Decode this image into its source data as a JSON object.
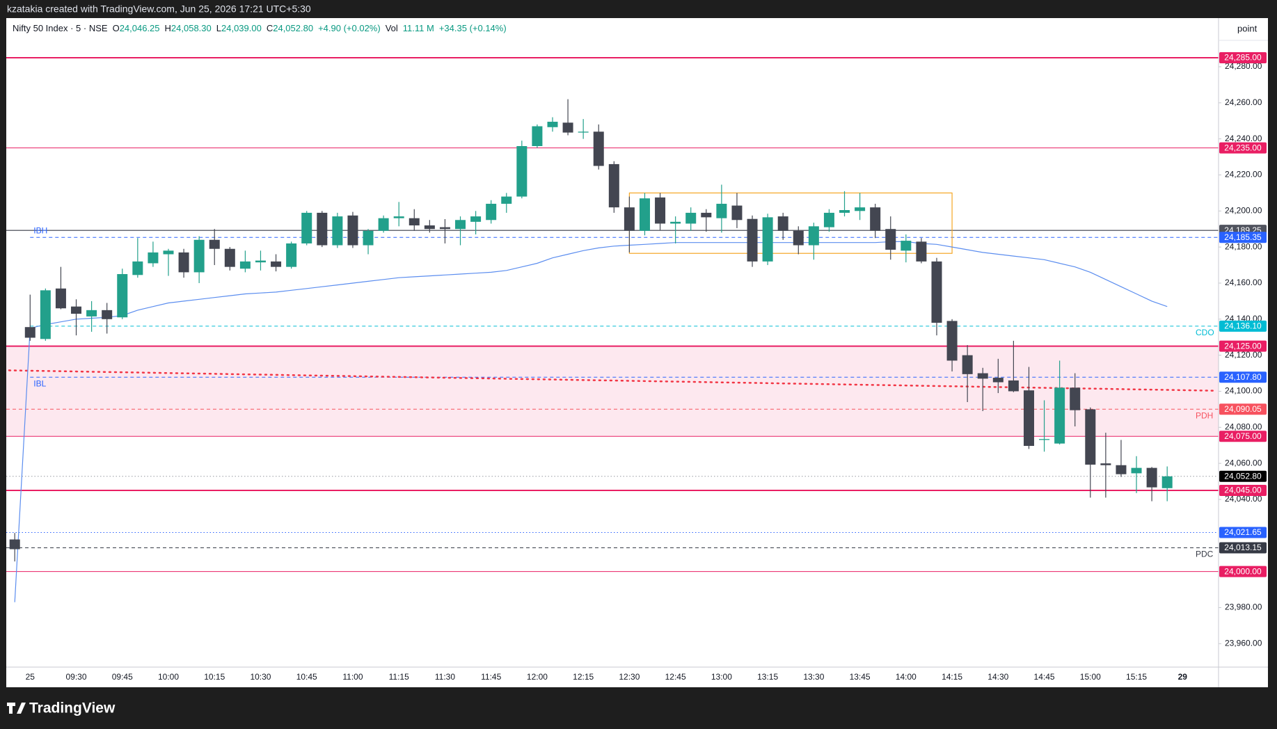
{
  "top_bar": {
    "text": "kzatakia created with TradingView.com, Jun 25, 2026 17:21 UTC+5:30"
  },
  "footer": {
    "brand": "TradingView"
  },
  "header": [
    {
      "text": "Nifty 50 Index · 5 · NSE",
      "color": "#131722"
    },
    {
      "text": "O",
      "color": "#131722"
    },
    {
      "text": "24,046.25",
      "color": "#089981"
    },
    {
      "text": "H",
      "color": "#131722"
    },
    {
      "text": "24,058.30",
      "color": "#089981"
    },
    {
      "text": "L",
      "color": "#131722"
    },
    {
      "text": "24,039.00",
      "color": "#089981"
    },
    {
      "text": "C",
      "color": "#131722"
    },
    {
      "text": "24,052.80",
      "color": "#089981"
    },
    {
      "text": "+4.90 (+0.02%)",
      "color": "#089981"
    },
    {
      "text": "Vol",
      "color": "#131722"
    },
    {
      "text": "11.11 M",
      "color": "#089981"
    },
    {
      "text": "+34.35 (+0.14%)",
      "color": "#089981"
    }
  ],
  "chart_data": {
    "type": "candlestick",
    "y_axis_unit": "point",
    "up_color": "#22a08b",
    "down_color": "#434651",
    "grid": false,
    "ylim": [
      23947,
      24307
    ],
    "yticks": [
      {
        "value": 24280,
        "label": "24,280.00"
      },
      {
        "value": 24260,
        "label": "24,260.00"
      },
      {
        "value": 24240,
        "label": "24,240.00"
      },
      {
        "value": 24220,
        "label": "24,220.00"
      },
      {
        "value": 24200,
        "label": "24,200.00"
      },
      {
        "value": 24180,
        "label": "24,180.00"
      },
      {
        "value": 24160,
        "label": "24,160.00"
      },
      {
        "value": 24140,
        "label": "24,140.00"
      },
      {
        "value": 24120,
        "label": "24,120.00"
      },
      {
        "value": 24100,
        "label": "24,100.00"
      },
      {
        "value": 24080,
        "label": "24,080.00"
      },
      {
        "value": 24060,
        "label": "24,060.00"
      },
      {
        "value": 24040,
        "label": "24,040.00"
      },
      {
        "value": 23980,
        "label": "23,980.00"
      },
      {
        "value": 23960,
        "label": "23,960.00"
      }
    ],
    "categories": [
      null,
      "25",
      null,
      null,
      "09:30",
      null,
      null,
      "09:45",
      null,
      null,
      "10:00",
      null,
      null,
      "10:15",
      null,
      null,
      "10:30",
      null,
      null,
      "10:45",
      null,
      null,
      "11:00",
      null,
      null,
      "11:15",
      null,
      null,
      "11:30",
      null,
      null,
      "11:45",
      null,
      null,
      "12:00",
      null,
      null,
      "12:15",
      null,
      null,
      "12:30",
      null,
      null,
      "12:45",
      null,
      null,
      "13:00",
      null,
      null,
      "13:15",
      null,
      null,
      "13:30",
      null,
      null,
      "13:45",
      null,
      null,
      "14:00",
      null,
      null,
      "14:15",
      null,
      null,
      "14:30",
      null,
      null,
      "14:45",
      null,
      null,
      "15:00",
      null,
      null,
      "15:15",
      null,
      null,
      "29"
    ],
    "open": [
      24017.8,
      24135.6,
      24129,
      24157,
      24147,
      24141.5,
      24145,
      24141,
      24164.5,
      24171,
      24176,
      24177,
      24166,
      24184,
      24179,
      24168,
      24171.5,
      24172,
      24169,
      24182,
      24199,
      24181,
      24197.5,
      24181,
      24189,
      24196,
      24196,
      24192,
      24191,
      24190,
      24194,
      24195,
      24204,
      24208,
      24236,
      24246.5,
      24249,
      24243.5,
      24244,
      24226,
      24202,
      24189,
      24207.5,
      24193,
      24193,
      24199,
      24196,
      24203,
      24195.6,
      24172,
      24197,
      24189,
      24181,
      24191,
      24199,
      24200,
      24202,
      24190,
      24178,
      24183,
      24172,
      24139,
      24120,
      24110,
      24107.5,
      24106,
      24100.5,
      24073,
      24071,
      24102,
      24090,
      24060,
      24059,
      24054.5,
      24057.5,
      24046.25,
      null
    ],
    "high": [
      24021.4,
      24153.6,
      24157,
      24169,
      24151,
      24150,
      24149,
      24168,
      24185,
      24183,
      24179,
      24179,
      24186,
      24190,
      24180,
      24178,
      24178,
      24176,
      24183,
      24200,
      24200,
      24199,
      24199.5,
      24190,
      24197.5,
      24205,
      24201,
      24195,
      24195.5,
      24197,
      24200,
      24206,
      24210,
      24239,
      24248,
      24252,
      24262,
      24251,
      24248,
      24227.6,
      24208,
      24210,
      24210,
      24197,
      24202,
      24201,
      24214.6,
      24210,
      24197.5,
      24198.5,
      24199,
      24191.5,
      24193.5,
      24201,
      24211,
      24210,
      24204,
      24197,
      24187,
      24185,
      24174,
      24140,
      24125.6,
      24113,
      24118,
      24128,
      24113.5,
      24095,
      24117,
      24110,
      24091,
      24077,
      24073,
      24064,
      24058,
      24058.3,
      null
    ],
    "low": [
      24005.6,
      24128,
      24128,
      24145.5,
      24131,
      24133,
      24132,
      24140,
      24163,
      24169,
      24164,
      24163,
      24160,
      24170,
      24167,
      24166,
      24167,
      24166.5,
      24168,
      24181,
      24180,
      24179.5,
      24179.5,
      24176,
      24188,
      24191.5,
      24189,
      24188,
      24182,
      24181,
      24187,
      24193,
      24199,
      24207,
      24235,
      24244,
      24242,
      24240,
      24223,
      24199,
      24177,
      24186.5,
      24189.5,
      24182,
      24189,
      24188.5,
      24188,
      24190.5,
      24169,
      24170,
      24184,
      24176,
      24173,
      24188.5,
      24197,
      24195,
      24185,
      24173,
      24171.5,
      24171,
      24131,
      24111,
      24094,
      24089,
      24099,
      24099.5,
      24068,
      24066.5,
      24070.5,
      24080.5,
      24041,
      24041,
      24052.5,
      24043.5,
      24039,
      24039,
      null
    ],
    "close": [
      24012.4,
      24129.7,
      24156,
      24146,
      24143,
      24145,
      24140,
      24165,
      24172,
      24177,
      24178,
      24166,
      24184,
      24179,
      24169,
      24172,
      24172.5,
      24169,
      24182,
      24199,
      24181,
      24197,
      24181,
      24189,
      24196,
      24197,
      24192,
      24190,
      24190,
      24195,
      24197,
      24204,
      24208,
      24236,
      24247,
      24249.5,
      24243.5,
      24244,
      24225,
      24202,
      24189,
      24207,
      24193,
      24194,
      24199,
      24196.5,
      24204,
      24195,
      24172,
      24196.5,
      24189,
      24181,
      24191.5,
      24199,
      24200.5,
      24202,
      24189,
      24178.5,
      24183.5,
      24172,
      24138,
      24117,
      24109.5,
      24107,
      24105,
      24100,
      24069.7,
      24073.5,
      24102,
      24089.5,
      24059.3,
      24059,
      24054,
      24057.5,
      24046.7,
      24052.8,
      null
    ],
    "ma": {
      "color": "#5b8def",
      "values": [
        23983,
        24135,
        24137,
        24138.5,
        24140,
        24140.5,
        24141,
        24142,
        24145,
        24147,
        24149,
        24150,
        24151,
        24152,
        24153,
        24154,
        24154.5,
        24155,
        24156,
        24157,
        24158,
        24159,
        24160,
        24161,
        24162,
        24163,
        24163.5,
        24164,
        24164.5,
        24165,
        24165.5,
        24166,
        24167,
        24169,
        24171,
        24174,
        24176,
        24178,
        24179.5,
        24180.5,
        24181,
        24181.5,
        24182,
        24182.5,
        24182.5,
        24182.5,
        24182.5,
        24182.5,
        24182.5,
        24182.5,
        24182.5,
        24182.5,
        24182.5,
        24182.5,
        24182.5,
        24182.5,
        24182.5,
        24183,
        24183,
        24182,
        24181.5,
        24180,
        24178.5,
        24177,
        24176,
        24175,
        24174,
        24173,
        24171,
        24169,
        24166,
        24162,
        24158,
        24154,
        24150,
        24147,
        null
      ]
    },
    "trendline": {
      "color": "#f23645",
      "values": [
        24111.6,
        24100.3
      ]
    },
    "zone": {
      "from": 24075,
      "to": 24125,
      "color": "#fde8ef"
    },
    "box": {
      "start": "12:30",
      "end": "14:15",
      "top": 24210,
      "bottom": 24176.5,
      "color": "#f5a623"
    },
    "levels": [
      {
        "value": 24285,
        "label": "24,285.00",
        "color": "#e91e63",
        "style": "solid",
        "width": 2
      },
      {
        "value": 24235,
        "label": "24,235.00",
        "color": "#e91e63",
        "style": "solid",
        "width": 1
      },
      {
        "value": 24189.25,
        "label": "24,189.25",
        "color": "#363a45",
        "box_color": "#50535e",
        "style": "solid",
        "width": 1.2
      },
      {
        "value": 24185.35,
        "label": "24,185.35",
        "color": "#2962ff",
        "style": "dashed",
        "width": 1,
        "tag": "IBH",
        "tag_side": "left",
        "from_open": true
      },
      {
        "value": 24136.1,
        "label": "24,136.10",
        "color": "#00bcd4",
        "style": "dashed",
        "width": 1,
        "tag": "CDO",
        "tag_side": "right",
        "from_open": true
      },
      {
        "value": 24125,
        "label": "24,125.00",
        "color": "#e91e63",
        "style": "solid",
        "width": 2
      },
      {
        "value": 24107.8,
        "label": "24,107.80",
        "color": "#2962ff",
        "style": "dashed",
        "width": 1,
        "tag": "IBL",
        "tag_side": "left",
        "from_open": true
      },
      {
        "value": 24090.05,
        "label": "24,090.05",
        "color": "#f7525f",
        "style": "dashed",
        "width": 1,
        "tag": "PDH",
        "tag_side": "right"
      },
      {
        "value": 24075,
        "label": "24,075.00",
        "color": "#e91e63",
        "style": "solid",
        "width": 1
      },
      {
        "value": 24052.8,
        "label": "24,052.80",
        "color": "#9598a1",
        "box_color": "#000000",
        "style": "dotted",
        "width": 1
      },
      {
        "value": 24045,
        "label": "24,045.00",
        "color": "#e91e63",
        "style": "solid",
        "width": 2
      },
      {
        "value": 24021.65,
        "label": "24,021.65",
        "color": "#2962ff",
        "style": "dotted",
        "width": 1
      },
      {
        "value": 24013.15,
        "label": "24,013.15",
        "color": "#363a45",
        "style": "dashed",
        "width": 1,
        "tag": "PDC",
        "tag_side": "right"
      },
      {
        "value": 24000,
        "label": "24,000.00",
        "color": "#e91e63",
        "style": "solid",
        "width": 1
      }
    ]
  }
}
